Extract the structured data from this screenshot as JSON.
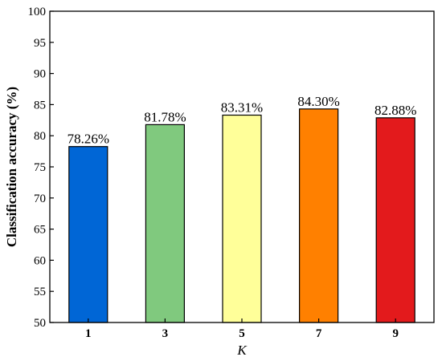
{
  "chart_data": {
    "type": "bar",
    "categories": [
      "1",
      "3",
      "5",
      "7",
      "9"
    ],
    "values": [
      78.26,
      81.78,
      83.31,
      84.3,
      82.88
    ],
    "data_labels": [
      "78.26%",
      "81.78%",
      "83.31%",
      "84.30%",
      "82.88%"
    ],
    "colors": [
      "#0066d6",
      "#80c97e",
      "#ffff99",
      "#ff8000",
      "#e31a1c"
    ],
    "xlabel": "K",
    "ylabel": "Classification accuracy (%)",
    "ylim": [
      50,
      100
    ],
    "yticks": [
      50,
      55,
      60,
      65,
      70,
      75,
      80,
      85,
      90,
      95,
      100
    ],
    "grid": false,
    "legend": "none"
  }
}
